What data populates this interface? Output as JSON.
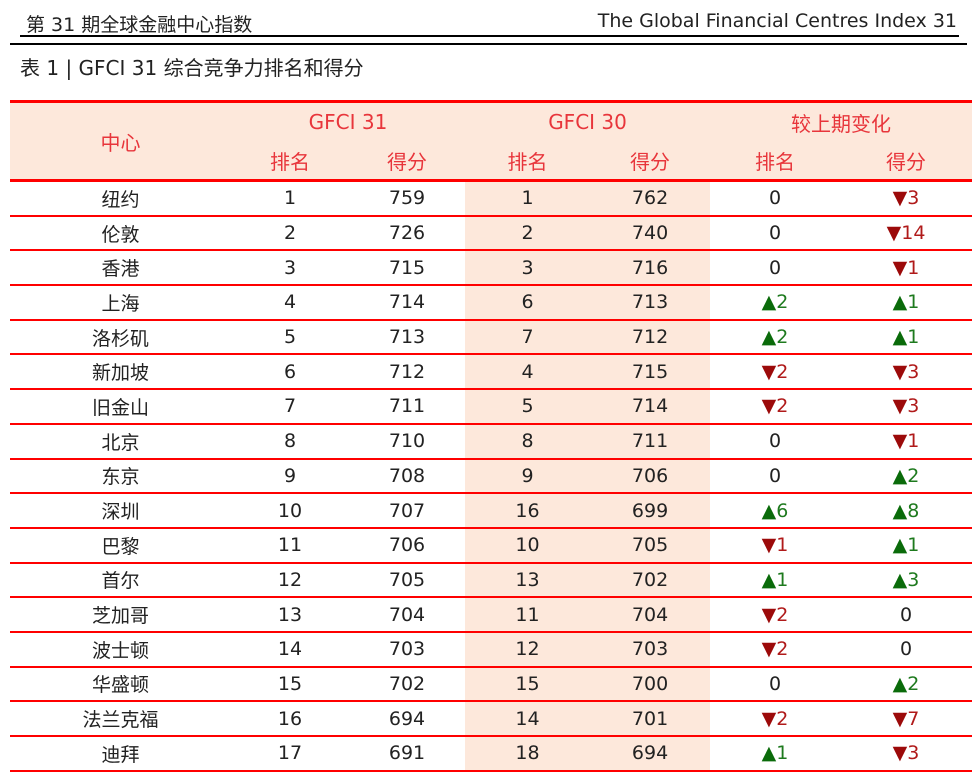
{
  "header": {
    "left": "第 31 期全球金融中心指数",
    "right": "The Global Financial Centres Index 31"
  },
  "title": "表 1 | GFCI 31 综合竞争力排名和得分",
  "table": {
    "col_center": "中心",
    "group1": "GFCI 31",
    "group2": "GFCI 30",
    "group3": "较上期变化",
    "rank": "排名",
    "score": "得分",
    "colors": {
      "up": "#0a6b0a",
      "down": "#9c0a0a",
      "line": "#ff0000",
      "shade": "#fde8db",
      "header_text": "#e8353b"
    },
    "rows": [
      {
        "center": "纽约",
        "r31": "1",
        "s31": "759",
        "r30": "1",
        "s30": "762",
        "dr": {
          "dir": "none",
          "v": "0"
        },
        "ds": {
          "dir": "down",
          "v": "3"
        }
      },
      {
        "center": "伦敦",
        "r31": "2",
        "s31": "726",
        "r30": "2",
        "s30": "740",
        "dr": {
          "dir": "none",
          "v": "0"
        },
        "ds": {
          "dir": "down",
          "v": "14"
        }
      },
      {
        "center": "香港",
        "r31": "3",
        "s31": "715",
        "r30": "3",
        "s30": "716",
        "dr": {
          "dir": "none",
          "v": "0"
        },
        "ds": {
          "dir": "down",
          "v": "1"
        }
      },
      {
        "center": "上海",
        "r31": "4",
        "s31": "714",
        "r30": "6",
        "s30": "713",
        "dr": {
          "dir": "up",
          "v": "2"
        },
        "ds": {
          "dir": "up",
          "v": "1"
        }
      },
      {
        "center": "洛杉矶",
        "r31": "5",
        "s31": "713",
        "r30": "7",
        "s30": "712",
        "dr": {
          "dir": "up",
          "v": "2"
        },
        "ds": {
          "dir": "up",
          "v": "1"
        }
      },
      {
        "center": "新加坡",
        "r31": "6",
        "s31": "712",
        "r30": "4",
        "s30": "715",
        "dr": {
          "dir": "down",
          "v": "2"
        },
        "ds": {
          "dir": "down",
          "v": "3"
        }
      },
      {
        "center": "旧金山",
        "r31": "7",
        "s31": "711",
        "r30": "5",
        "s30": "714",
        "dr": {
          "dir": "down",
          "v": "2"
        },
        "ds": {
          "dir": "down",
          "v": "3"
        }
      },
      {
        "center": "北京",
        "r31": "8",
        "s31": "710",
        "r30": "8",
        "s30": "711",
        "dr": {
          "dir": "none",
          "v": "0"
        },
        "ds": {
          "dir": "down",
          "v": "1"
        }
      },
      {
        "center": "东京",
        "r31": "9",
        "s31": "708",
        "r30": "9",
        "s30": "706",
        "dr": {
          "dir": "none",
          "v": "0"
        },
        "ds": {
          "dir": "up",
          "v": "2"
        }
      },
      {
        "center": "深圳",
        "r31": "10",
        "s31": "707",
        "r30": "16",
        "s30": "699",
        "dr": {
          "dir": "up",
          "v": "6"
        },
        "ds": {
          "dir": "up",
          "v": "8"
        }
      },
      {
        "center": "巴黎",
        "r31": "11",
        "s31": "706",
        "r30": "10",
        "s30": "705",
        "dr": {
          "dir": "down",
          "v": "1"
        },
        "ds": {
          "dir": "up",
          "v": "1"
        }
      },
      {
        "center": "首尔",
        "r31": "12",
        "s31": "705",
        "r30": "13",
        "s30": "702",
        "dr": {
          "dir": "up",
          "v": "1"
        },
        "ds": {
          "dir": "up",
          "v": "3"
        }
      },
      {
        "center": "芝加哥",
        "r31": "13",
        "s31": "704",
        "r30": "11",
        "s30": "704",
        "dr": {
          "dir": "down",
          "v": "2"
        },
        "ds": {
          "dir": "none",
          "v": "0"
        }
      },
      {
        "center": "波士顿",
        "r31": "14",
        "s31": "703",
        "r30": "12",
        "s30": "703",
        "dr": {
          "dir": "down",
          "v": "2"
        },
        "ds": {
          "dir": "none",
          "v": "0"
        }
      },
      {
        "center": "华盛顿",
        "r31": "15",
        "s31": "702",
        "r30": "15",
        "s30": "700",
        "dr": {
          "dir": "none",
          "v": "0"
        },
        "ds": {
          "dir": "up",
          "v": "2"
        }
      },
      {
        "center": "法兰克福",
        "r31": "16",
        "s31": "694",
        "r30": "14",
        "s30": "701",
        "dr": {
          "dir": "down",
          "v": "2"
        },
        "ds": {
          "dir": "down",
          "v": "7"
        }
      },
      {
        "center": "迪拜",
        "r31": "17",
        "s31": "691",
        "r30": "18",
        "s30": "694",
        "dr": {
          "dir": "up",
          "v": "1"
        },
        "ds": {
          "dir": "down",
          "v": "3"
        }
      }
    ]
  }
}
